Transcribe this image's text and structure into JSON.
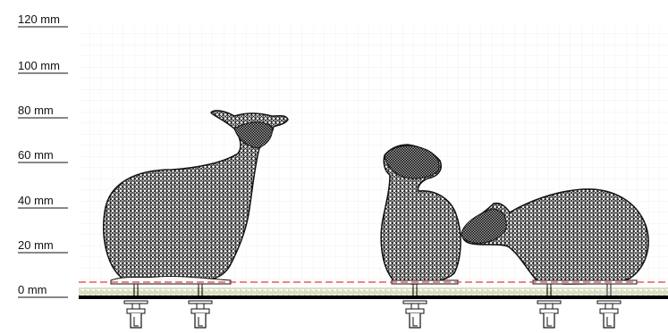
{
  "scale": {
    "labels": [
      "120 mm",
      "100 mm",
      "80 mm",
      "60 mm",
      "40 mm",
      "20 mm",
      "0 mm"
    ]
  },
  "scene": {
    "objects": [
      "sheep-standing",
      "sheep-head-raised",
      "sheep-grazing"
    ],
    "icons": [
      "mount-bolt-icon"
    ]
  },
  "colors": {
    "mesh": "#111111",
    "grid": "#eeeeee",
    "cutline": "#e23b3b",
    "ground": "#000000",
    "grass": "#a8ad6b"
  }
}
